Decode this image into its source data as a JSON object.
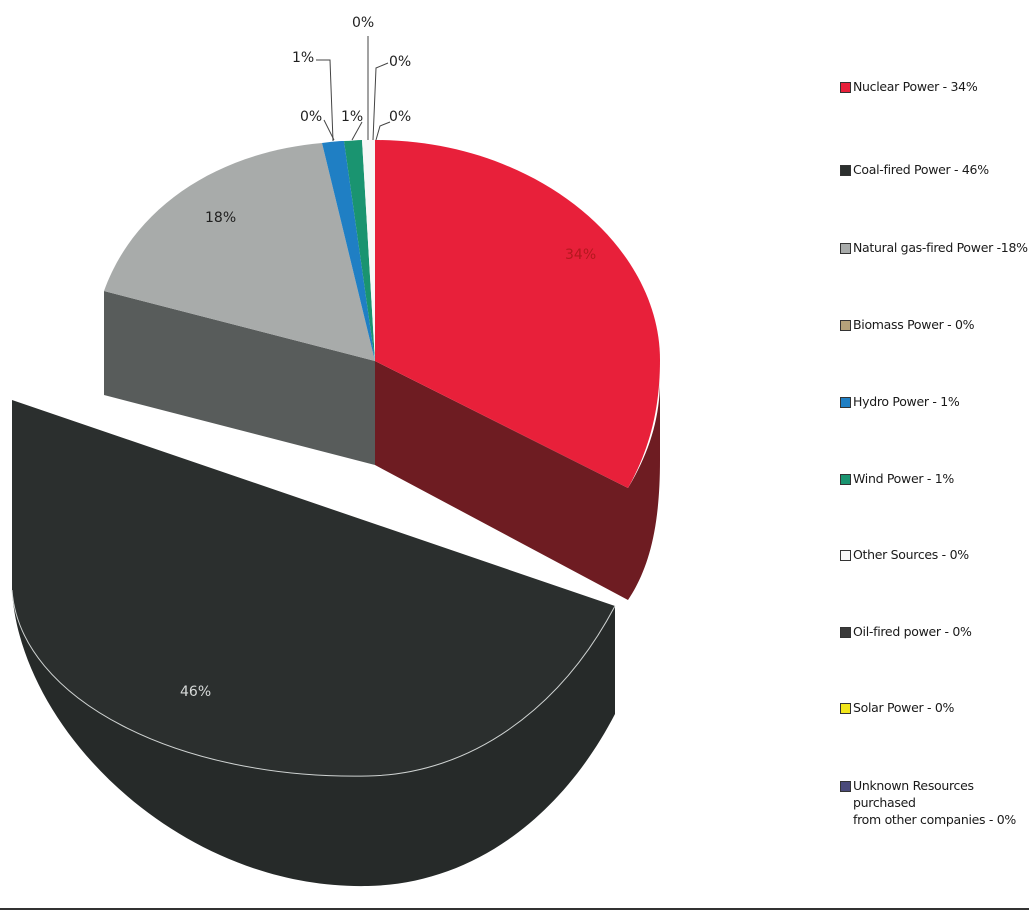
{
  "chart_data": {
    "type": "pie",
    "title": "",
    "labels": [
      "Nuclear Power",
      "Coal-fired Power",
      "Natural gas-fired Power",
      "Biomass Power",
      "Hydro Power",
      "Wind Power",
      "Other Sources",
      "Oil-fired power",
      "Solar Power",
      "Unknown Resources purchased from other companies"
    ],
    "values": [
      34,
      46,
      18,
      0,
      1,
      1,
      0,
      0,
      0,
      0
    ],
    "data_labels": [
      "34%",
      "46%",
      "18%",
      "0%",
      "1%",
      "1%",
      "0%",
      "0%",
      "0%",
      "0%"
    ],
    "colors": [
      "#e8203a",
      "#2b2f2e",
      "#a8abaa",
      "#b5a27a",
      "#1f7fc4",
      "#1a9470",
      "#f7f7f7",
      "#3a3a3a",
      "#f2e61a",
      "#4a4a7a"
    ],
    "exploded": "Coal-fired Power",
    "three_d": true,
    "legend_position": "right"
  },
  "legend": {
    "items": [
      {
        "label": "Nuclear Power - 34%",
        "color": "#e8203a"
      },
      {
        "label": "Coal-fired Power - 46%",
        "color": "#2b2f2e"
      },
      {
        "label": "Natural gas-fired Power -18%",
        "color": "#a8abaa"
      },
      {
        "label": "Biomass Power - 0%",
        "color": "#b5a27a"
      },
      {
        "label": "Hydro Power - 1%",
        "color": "#1f7fc4"
      },
      {
        "label": "Wind Power - 1%",
        "color": "#1a9470"
      },
      {
        "label": "Other Sources - 0%",
        "color": "#f7f7f7"
      },
      {
        "label": "Oil-fired power - 0%",
        "color": "#3a3a3a"
      },
      {
        "label": "Solar Power - 0%",
        "color": "#f2e61a"
      },
      {
        "label": "Unknown Resources purchased\nfrom other companies - 0%",
        "color": "#4a4a7a"
      }
    ]
  }
}
